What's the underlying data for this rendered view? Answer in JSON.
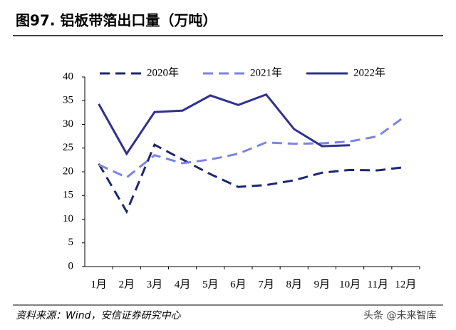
{
  "chart_data": {
    "type": "line",
    "title": "图97. 铝板带箔出口量（万吨）",
    "source": "资料来源：Wind，安信证券研究中心",
    "watermark": "头条 @未来智库",
    "categories": [
      "1月",
      "2月",
      "3月",
      "4月",
      "5月",
      "6月",
      "7月",
      "8月",
      "9月",
      "10月",
      "11月",
      "12月"
    ],
    "series": [
      {
        "name": "2020年",
        "color": "#1c2771",
        "dash": true,
        "values": [
          21.7,
          11.6,
          25.7,
          22.6,
          19.5,
          16.8,
          17.2,
          18.2,
          19.8,
          20.4,
          20.3,
          21.0
        ]
      },
      {
        "name": "2021年",
        "color": "#7b83e6",
        "dash": true,
        "values": [
          21.5,
          18.8,
          23.5,
          21.8,
          22.6,
          23.8,
          26.2,
          25.9,
          26.0,
          26.4,
          27.5,
          31.8
        ]
      },
      {
        "name": "2022年",
        "color": "#2e3190",
        "dash": false,
        "values": [
          34.3,
          23.8,
          32.6,
          32.9,
          36.1,
          34.1,
          36.3,
          29.0,
          25.4,
          25.6,
          null,
          null
        ]
      }
    ],
    "ylim": [
      0,
      40
    ],
    "yticks": [
      0,
      5,
      10,
      15,
      20,
      25,
      30,
      35,
      40
    ],
    "legend": "top"
  }
}
